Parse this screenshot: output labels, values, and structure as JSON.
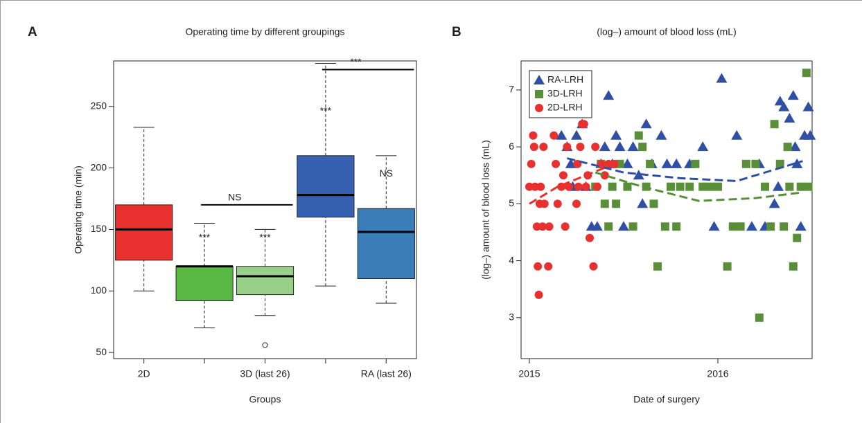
{
  "chart_data": [
    {
      "type": "box",
      "panel": "A",
      "title": "Operating time by different groupings",
      "x_label": "Groups",
      "y_label": "Operating time (min)",
      "categories": [
        "2D",
        null,
        "3D (last 26)",
        null,
        "RA (last 26)"
      ],
      "boxes": [
        {
          "color": "#e8302e",
          "min": 100,
          "q1": 125,
          "median": 150,
          "q3": 170,
          "max": 233,
          "outliers": []
        },
        {
          "color": "#5ab845",
          "min": 70,
          "q1": 92,
          "median": 120,
          "q3": 120,
          "max": 155,
          "outliers": []
        },
        {
          "color": "#98d08a",
          "min": 80,
          "q1": 97,
          "median": 112,
          "q3": 120,
          "max": 150,
          "outliers": [
            56
          ]
        },
        {
          "color": "#3561b0",
          "min": 104,
          "q1": 160,
          "median": 178,
          "q3": 210,
          "max": 285,
          "outliers": []
        },
        {
          "color": "#3a7db8",
          "min": 90,
          "q1": 110,
          "median": 148,
          "q3": 167,
          "max": 210,
          "outliers": []
        }
      ],
      "annotations": [
        {
          "text": "***",
          "at": 1,
          "y": 143,
          "color": "#e8302e"
        },
        {
          "text": "***",
          "at": 2,
          "y": 143,
          "color": "#e8302e"
        },
        {
          "text": "***",
          "at": 3,
          "y": 246,
          "color": "#e8302e"
        },
        {
          "text": "NS",
          "at": 4,
          "y": 195,
          "color": "#e8302e"
        }
      ],
      "brackets": [
        {
          "text": "NS",
          "from": 1,
          "to": 2,
          "y": 170
        },
        {
          "text": "***",
          "from": 3,
          "to": 4,
          "y": 280
        }
      ],
      "ylim": [
        45,
        287
      ],
      "yticks": [
        50,
        100,
        150,
        200,
        250
      ]
    },
    {
      "type": "scatter",
      "panel": "B",
      "title": "(log–) amount of blood loss (mL)",
      "x_label": "Date of surgery",
      "y_label": "(log–) amount of blood loss (mL)",
      "legend": "top-left",
      "series": [
        {
          "name": "RA-LRH",
          "color": "#2e4fa3",
          "marker": "triangle",
          "x": [
            2015.17,
            2015.2,
            2015.22,
            2015.23,
            2015.25,
            2015.28,
            2015.3,
            2015.33,
            2015.36,
            2015.38,
            2015.4,
            2015.42,
            2015.44,
            2015.46,
            2015.48,
            2015.5,
            2015.52,
            2015.55,
            2015.58,
            2015.6,
            2015.62,
            2015.65,
            2015.7,
            2015.73,
            2015.78,
            2015.85,
            2015.92,
            2015.98,
            2016.02,
            2016.1,
            2016.18,
            2016.22,
            2016.25,
            2016.3,
            2016.32,
            2016.33,
            2016.35,
            2016.38,
            2016.4,
            2016.41,
            2016.42,
            2016.44,
            2016.46,
            2016.48,
            2016.49
          ],
          "values": [
            6.2,
            6.0,
            5.7,
            5.3,
            6.2,
            6.4,
            5.3,
            4.6,
            4.6,
            5.7,
            6.0,
            6.9,
            5.7,
            6.2,
            6.0,
            4.6,
            5.7,
            6.0,
            5.5,
            5.0,
            6.4,
            5.7,
            6.2,
            5.7,
            5.7,
            5.7,
            6.0,
            4.6,
            7.2,
            6.2,
            4.6,
            5.7,
            4.6,
            5.0,
            5.3,
            6.8,
            6.7,
            6.5,
            6.9,
            6.0,
            5.7,
            4.6,
            6.2,
            6.7,
            6.2
          ],
          "trend_x": [
            2015.2,
            2015.5,
            2015.8,
            2016.1,
            2016.45
          ],
          "trend_y": [
            5.8,
            5.55,
            5.45,
            5.4,
            5.75
          ]
        },
        {
          "name": "3D-LRH",
          "color": "#5a8f3a",
          "marker": "square",
          "x": [
            2015.35,
            2015.38,
            2015.4,
            2015.42,
            2015.44,
            2015.46,
            2015.48,
            2015.52,
            2015.55,
            2015.58,
            2015.6,
            2015.62,
            2015.64,
            2015.66,
            2015.68,
            2015.72,
            2015.75,
            2015.78,
            2015.8,
            2015.85,
            2015.88,
            2015.92,
            2015.96,
            2016.0,
            2016.05,
            2016.08,
            2016.12,
            2016.15,
            2016.2,
            2016.22,
            2016.25,
            2016.28,
            2016.3,
            2016.33,
            2016.35,
            2016.37,
            2016.38,
            2016.4,
            2016.42,
            2016.44,
            2016.47,
            2016.48
          ],
          "values": [
            5.3,
            5.7,
            5.0,
            4.6,
            5.3,
            5.0,
            5.7,
            5.3,
            4.6,
            6.2,
            6.0,
            5.3,
            5.7,
            5.0,
            3.9,
            4.6,
            5.3,
            4.6,
            5.3,
            5.3,
            5.7,
            5.3,
            5.3,
            5.3,
            3.9,
            4.6,
            4.6,
            5.7,
            5.7,
            3.0,
            5.3,
            4.6,
            6.4,
            5.7,
            4.6,
            6.0,
            5.3,
            3.9,
            4.4,
            5.3,
            7.3,
            5.3
          ],
          "trend_x": [
            2015.35,
            2015.6,
            2015.9,
            2016.2,
            2016.45
          ],
          "trend_y": [
            5.55,
            5.3,
            5.05,
            5.1,
            5.2
          ]
        },
        {
          "name": "2D-LRH",
          "color": "#e8302e",
          "marker": "circle",
          "x": [
            2015.0,
            2015.01,
            2015.02,
            2015.025,
            2015.03,
            2015.04,
            2015.045,
            2015.05,
            2015.055,
            2015.06,
            2015.07,
            2015.075,
            2015.08,
            2015.1,
            2015.105,
            2015.13,
            2015.14,
            2015.15,
            2015.17,
            2015.18,
            2015.19,
            2015.2,
            2015.21,
            2015.25,
            2015.255,
            2015.26,
            2015.27,
            2015.28,
            2015.29,
            2015.3,
            2015.31,
            2015.32,
            2015.34,
            2015.35,
            2015.36,
            2015.38,
            2015.4,
            2015.42,
            2015.45
          ],
          "values": [
            5.3,
            5.7,
            6.2,
            6.0,
            5.3,
            4.6,
            3.9,
            3.4,
            5.0,
            5.3,
            4.6,
            6.0,
            5.0,
            3.9,
            4.6,
            6.2,
            5.7,
            5.0,
            5.3,
            5.5,
            4.6,
            6.0,
            5.3,
            5.0,
            5.7,
            5.3,
            6.0,
            6.4,
            6.4,
            5.3,
            5.5,
            4.4,
            3.9,
            6.0,
            5.3,
            5.7,
            5.5,
            5.7,
            5.7
          ],
          "trend_x": [
            2015.0,
            2015.15,
            2015.45
          ],
          "trend_y": [
            5.0,
            5.3,
            5.7
          ]
        }
      ],
      "xlim": [
        2014.956,
        2016.5
      ],
      "xticks": [
        2015,
        2016
      ],
      "ylim": [
        2.28,
        7.51
      ],
      "yticks": [
        3,
        4,
        5,
        6,
        7
      ]
    }
  ]
}
